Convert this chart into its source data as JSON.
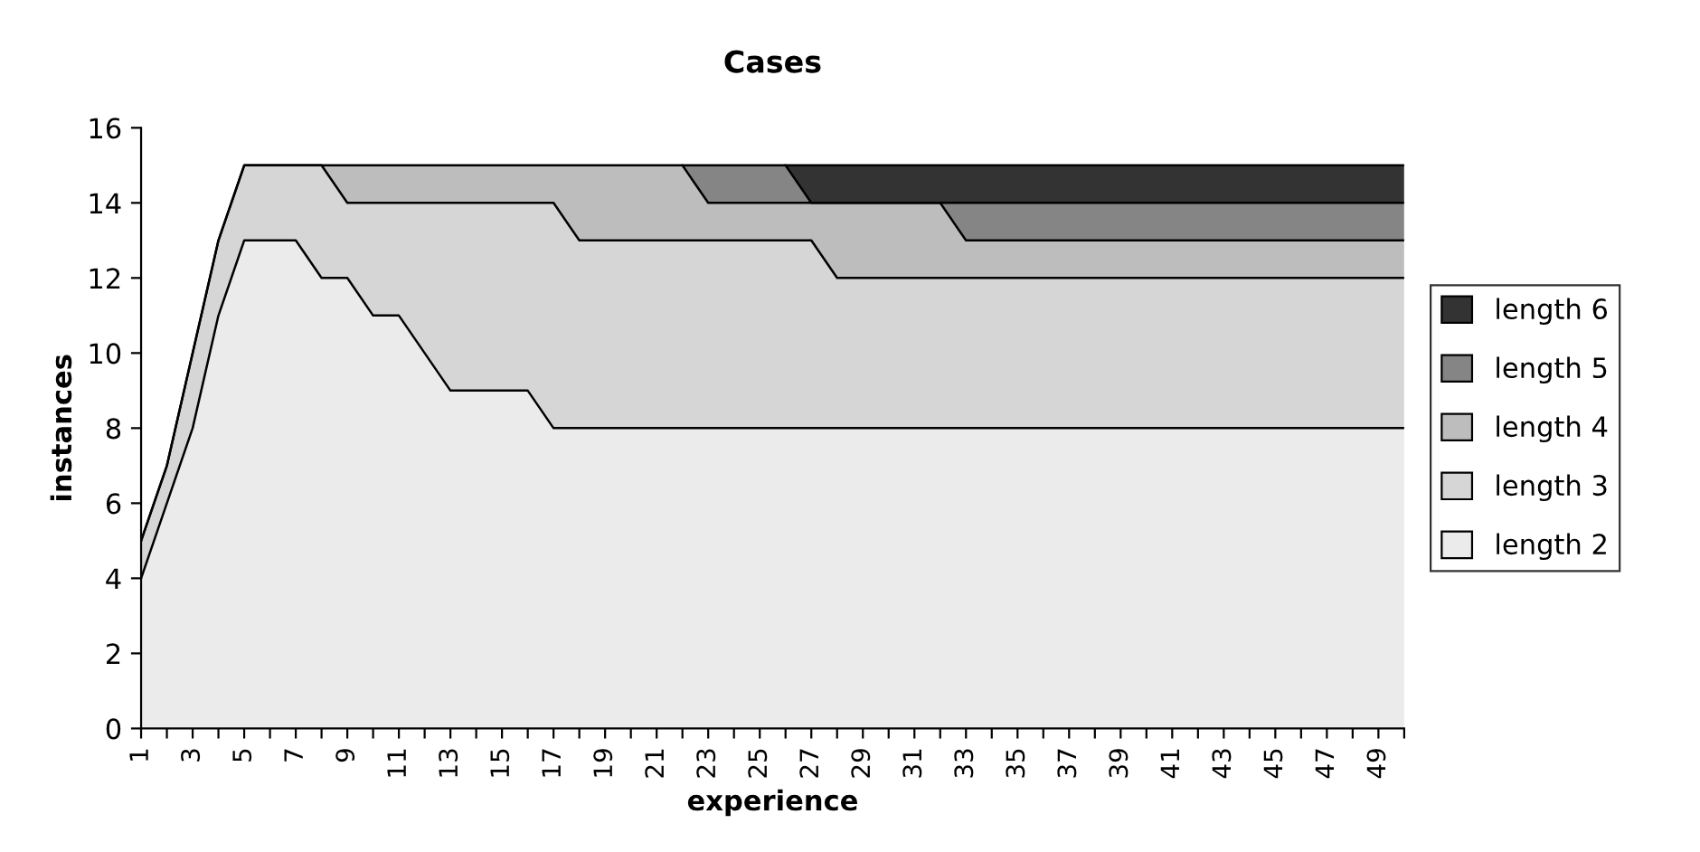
{
  "chart_data": {
    "type": "area",
    "stacked": true,
    "title": "Cases",
    "xlabel": "experience",
    "ylabel": "instances",
    "categories": [
      "1",
      null,
      "3",
      null,
      "5",
      null,
      "7",
      null,
      "9",
      null,
      "11",
      null,
      "13",
      null,
      "15",
      null,
      "17",
      null,
      "19",
      null,
      "21",
      null,
      "23",
      null,
      "25",
      null,
      "27",
      null,
      "29",
      null,
      "31",
      null,
      "33",
      null,
      "35",
      null,
      "37",
      null,
      "39",
      null,
      "41",
      null,
      "43",
      null,
      "45",
      null,
      "47",
      null,
      "49",
      null
    ],
    "series": [
      {
        "name": "length 2",
        "color": "#ebebeb",
        "values": [
          4,
          6,
          8,
          11,
          13,
          13,
          13,
          12,
          12,
          11,
          11,
          10,
          9,
          9,
          9,
          9,
          8,
          8,
          8,
          8,
          8,
          8,
          8,
          8,
          8,
          8,
          8,
          8,
          8,
          8,
          8,
          8,
          8,
          8,
          8,
          8,
          8,
          8,
          8,
          8,
          8,
          8,
          8,
          8,
          8,
          8,
          8,
          8,
          8,
          8
        ]
      },
      {
        "name": "length 3",
        "color": "#d6d6d6",
        "values": [
          1,
          1,
          2,
          2,
          2,
          2,
          2,
          3,
          2,
          3,
          3,
          4,
          5,
          5,
          5,
          5,
          6,
          5,
          5,
          5,
          5,
          5,
          5,
          5,
          5,
          5,
          5,
          4,
          4,
          4,
          4,
          4,
          4,
          4,
          4,
          4,
          4,
          4,
          4,
          4,
          4,
          4,
          4,
          4,
          4,
          4,
          4,
          4,
          4,
          4
        ]
      },
      {
        "name": "length 4",
        "color": "#bdbdbd",
        "values": [
          0,
          0,
          0,
          0,
          0,
          0,
          0,
          0,
          1,
          1,
          1,
          1,
          1,
          1,
          1,
          1,
          1,
          2,
          2,
          2,
          2,
          2,
          1,
          1,
          1,
          1,
          1,
          2,
          2,
          2,
          2,
          2,
          1,
          1,
          1,
          1,
          1,
          1,
          1,
          1,
          1,
          1,
          1,
          1,
          1,
          1,
          1,
          1,
          1,
          1
        ]
      },
      {
        "name": "length 5",
        "color": "#858585",
        "values": [
          null,
          null,
          null,
          null,
          null,
          null,
          null,
          null,
          null,
          null,
          null,
          null,
          null,
          null,
          null,
          null,
          null,
          null,
          null,
          null,
          null,
          0,
          1,
          1,
          1,
          1,
          0,
          0,
          0,
          0,
          0,
          0,
          1,
          1,
          1,
          1,
          1,
          1,
          1,
          1,
          1,
          1,
          1,
          1,
          1,
          1,
          1,
          1,
          1,
          1
        ]
      },
      {
        "name": "length 6",
        "color": "#333333",
        "values": [
          null,
          null,
          null,
          null,
          null,
          null,
          null,
          null,
          null,
          null,
          null,
          null,
          null,
          null,
          null,
          null,
          null,
          null,
          null,
          null,
          null,
          null,
          null,
          null,
          null,
          0,
          1,
          1,
          1,
          1,
          1,
          1,
          1,
          1,
          1,
          1,
          1,
          1,
          1,
          1,
          1,
          1,
          1,
          1,
          1,
          1,
          1,
          1,
          1,
          1
        ]
      }
    ],
    "ylim": [
      0,
      16
    ],
    "yticks": [
      0,
      2,
      4,
      6,
      8,
      10,
      12,
      14,
      16
    ],
    "grid": false,
    "legend": "right"
  }
}
